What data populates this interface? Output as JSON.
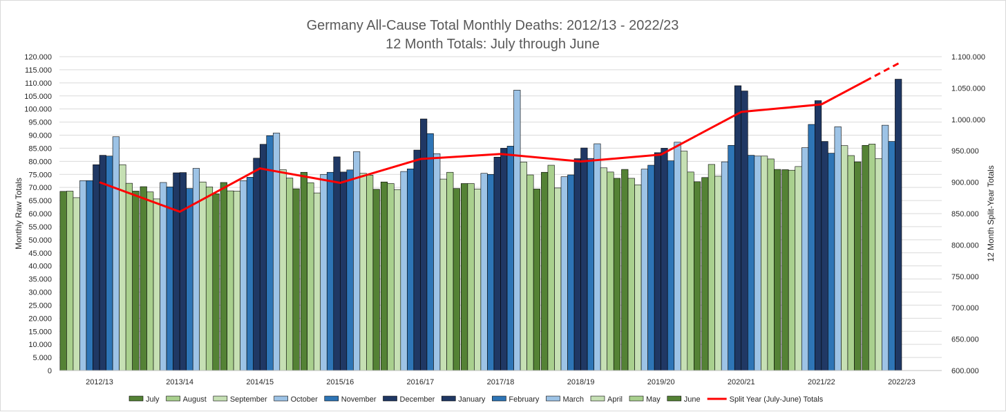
{
  "chart_data": {
    "type": "bar",
    "title": "Germany All-Cause Total Monthly Deaths: 2012/13 - 2022/23",
    "subtitle": "12 Month Totals: July through June",
    "ylabel": "Monthly Raw Totals",
    "y2label": "12 Month Split-Year Totals",
    "ylim": [
      0,
      120000
    ],
    "ystep": 5000,
    "y2lim": [
      600000,
      1100000
    ],
    "y2step": 50000,
    "grid": true,
    "legend_position": "bottom",
    "categories": [
      "2012/13",
      "2013/14",
      "2014/15",
      "2015/16",
      "2016/17",
      "2017/18",
      "2018/19",
      "2019/20",
      "2020/21",
      "2021/22",
      "2022/23"
    ],
    "y_tick_labels": [
      "0",
      "5.000",
      "10.000",
      "15.000",
      "20.000",
      "25.000",
      "30.000",
      "35.000",
      "40.000",
      "45.000",
      "50.000",
      "55.000",
      "60.000",
      "65.000",
      "70.000",
      "75.000",
      "80.000",
      "85.000",
      "90.000",
      "95.000",
      "100.000",
      "105.000",
      "110.000",
      "115.000",
      "120.000"
    ],
    "y2_tick_labels": [
      "600.000",
      "650.000",
      "700.000",
      "750.000",
      "800.000",
      "850.000",
      "900.000",
      "950.000",
      "1.000.000",
      "1.050.000",
      "1.100.000"
    ],
    "series": [
      {
        "name": "July",
        "color": "#548235",
        "values": [
          68500,
          70300,
          71900,
          75800,
          72100,
          71500,
          75800,
          76900,
          73800,
          76800,
          86100
        ]
      },
      {
        "name": "August",
        "color": "#a9d08e",
        "values": [
          68600,
          68300,
          68700,
          71800,
          71500,
          71500,
          78500,
          73500,
          78800,
          76600,
          86600
        ]
      },
      {
        "name": "September",
        "color": "#c6e0b4",
        "values": [
          66100,
          65600,
          68600,
          67900,
          69200,
          69400,
          69800,
          71000,
          74300,
          78000,
          81000
        ]
      },
      {
        "name": "October",
        "color": "#9dc3e6",
        "values": [
          72600,
          71900,
          72600,
          75000,
          76100,
          75400,
          74100,
          77000,
          79800,
          85200,
          93800
        ]
      },
      {
        "name": "November",
        "color": "#2e75b6",
        "values": [
          72600,
          70200,
          73900,
          75800,
          77100,
          75000,
          74800,
          78500,
          86100,
          94100,
          87600
        ]
      },
      {
        "name": "December",
        "color": "#1f3864",
        "values": [
          78700,
          75600,
          81200,
          81700,
          84300,
          81600,
          81000,
          83300,
          108900,
          103200,
          111400
        ]
      },
      {
        "name": "January",
        "color": "#203864",
        "values": [
          82300,
          75700,
          86500,
          75900,
          96200,
          85000,
          85100,
          85000,
          106900,
          87600,
          null
        ]
      },
      {
        "name": "February",
        "color": "#2e75b6",
        "values": [
          82000,
          69600,
          89800,
          76700,
          90600,
          85800,
          81100,
          80200,
          82300,
          83100,
          null
        ]
      },
      {
        "name": "March",
        "color": "#9dc3e6",
        "values": [
          89400,
          77300,
          90800,
          83700,
          82900,
          107200,
          86700,
          87300,
          82000,
          93200,
          null
        ]
      },
      {
        "name": "April",
        "color": "#c6e0b4",
        "values": [
          78700,
          72100,
          76800,
          75400,
          73200,
          79700,
          77500,
          83900,
          82000,
          86000,
          null
        ]
      },
      {
        "name": "May",
        "color": "#a9d08e",
        "values": [
          71600,
          70200,
          73600,
          74700,
          75800,
          74800,
          75900,
          75900,
          80900,
          82200,
          null
        ]
      },
      {
        "name": "June",
        "color": "#548235",
        "values": [
          68600,
          67600,
          69500,
          69300,
          69600,
          69400,
          73500,
          72200,
          76900,
          79800,
          null
        ]
      }
    ],
    "line_series": {
      "name": "Split Year (July-June) Totals",
      "color": "#ff0000",
      "values": [
        900000,
        853000,
        922000,
        899000,
        937000,
        945000,
        933000,
        944000,
        1012000,
        1024000,
        1092000
      ],
      "projected_from_index": 9
    }
  }
}
